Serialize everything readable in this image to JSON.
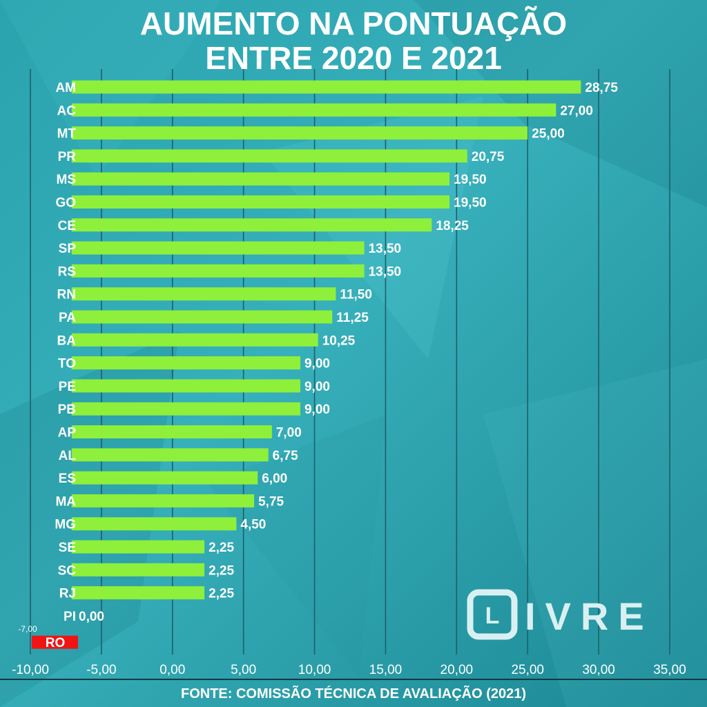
{
  "header": {
    "title_line1": "AUMENTO NA PONTUAÇÃO",
    "title_line2": "ENTRE 2020 E 2021"
  },
  "footer": {
    "source": "FONTE: COMISSÃO TÉCNICA DE AVALIAÇÃO (2021)"
  },
  "logo": {
    "mark": "L",
    "text": "IVRE"
  },
  "colors": {
    "positive_bar": "#8ef03a",
    "negative_bar": "#f01414",
    "background": "#1f8f9c",
    "gridline": "#1d5f6a",
    "text": "#ffffff"
  },
  "chart_data": {
    "type": "bar",
    "orientation": "horizontal",
    "title": "AUMENTO NA PONTUAÇÃO ENTRE 2020 E 2021",
    "xlim": [
      -10,
      35
    ],
    "x_ticks": [
      -10,
      -5,
      0,
      5,
      10,
      15,
      20,
      25,
      30,
      35
    ],
    "x_tick_labels": [
      "-10,00",
      "-5,00",
      "0,00",
      "5,00",
      "10,00",
      "15,00",
      "20,00",
      "25,00",
      "30,00",
      "35,00"
    ],
    "grid": true,
    "categories": [
      "AM",
      "AC",
      "MT",
      "PR",
      "MS",
      "GO",
      "CE",
      "SP",
      "RS",
      "RN",
      "PA",
      "BA",
      "TO",
      "PE",
      "PB",
      "AP",
      "AL",
      "ES",
      "MA",
      "MG",
      "SE",
      "SC",
      "RJ",
      "PI",
      "RO"
    ],
    "values": [
      28.75,
      27.0,
      25.0,
      20.75,
      19.5,
      19.5,
      18.25,
      13.5,
      13.5,
      11.5,
      11.25,
      10.25,
      9.0,
      9.0,
      9.0,
      7.0,
      6.75,
      6.0,
      5.75,
      4.5,
      2.25,
      2.25,
      2.25,
      0.0,
      -7.0
    ],
    "value_labels": [
      "28,75",
      "27,00",
      "25,00",
      "20,75",
      "19,50",
      "19,50",
      "18,25",
      "13,50",
      "13,50",
      "11,50",
      "11,25",
      "10,25",
      "9,00",
      "9,00",
      "9,00",
      "7,00",
      "6,75",
      "6,00",
      "5,75",
      "4,50",
      "2,25",
      "2,25",
      "2,25",
      "0,00",
      "-7,00"
    ]
  }
}
